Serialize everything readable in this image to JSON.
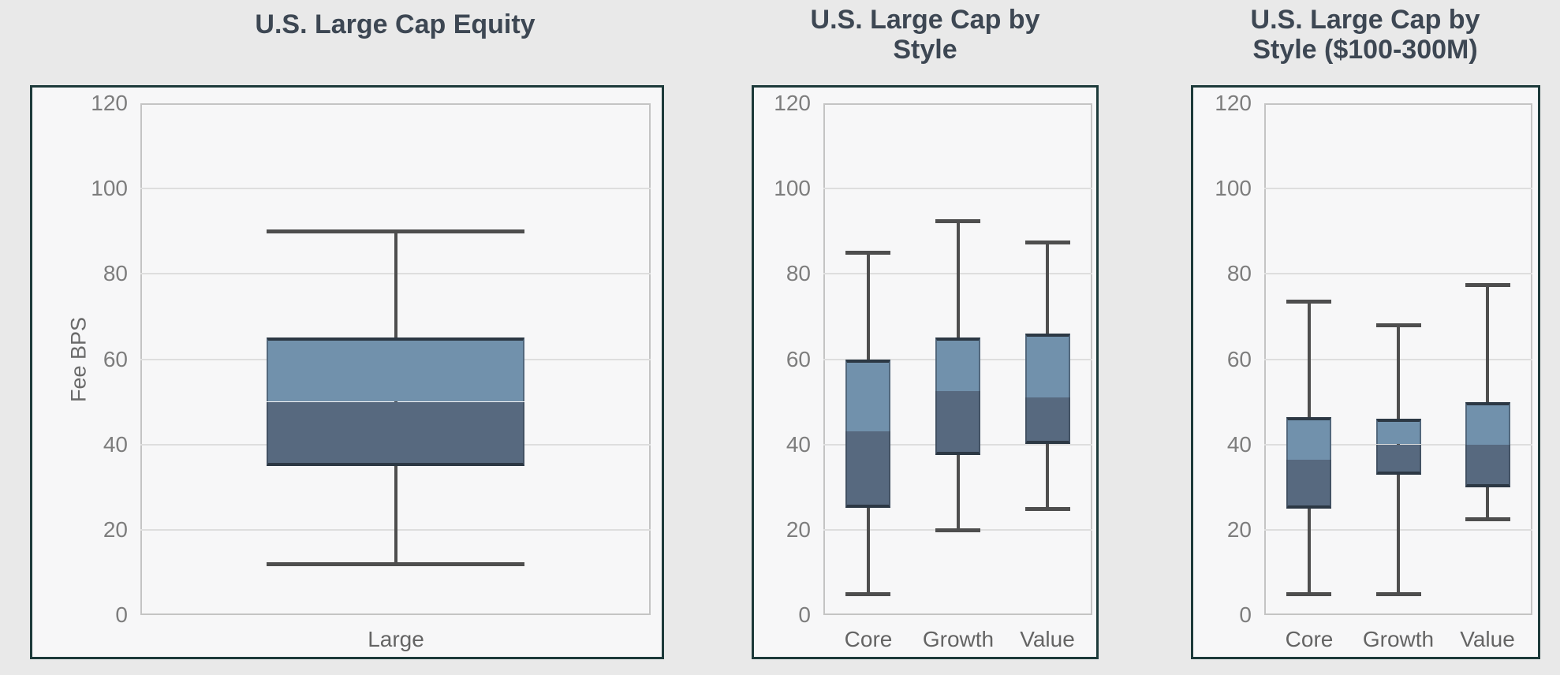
{
  "page": {
    "background_color": "#e9e9e9",
    "card_background": "#f7f7f8",
    "card_border_color": "#1d3a3a",
    "title_color": "#3d4753",
    "tick_label_color": "#7d7d7d",
    "category_label_color": "#646464",
    "gridline_color": "#dedede",
    "box_upper_color": "#7191ac",
    "box_lower_color": "#57697f",
    "box_edge_color": "#2c3844",
    "whisker_color": "#4e4e4e"
  },
  "chart_data": [
    {
      "type": "boxplot",
      "title": "U.S. Large Cap Equity",
      "title_lines": [
        "U.S. Large Cap Equity"
      ],
      "ylabel": "Fee BPS",
      "ylim": [
        0,
        120
      ],
      "yticks": [
        0,
        20,
        40,
        60,
        80,
        100,
        120
      ],
      "grid": true,
      "legend": "none",
      "categories": [
        "Large"
      ],
      "boxes": [
        {
          "category": "Large",
          "whisker_low": 12,
          "q1": 35,
          "median": 50,
          "q3": 65,
          "whisker_high": 90
        }
      ]
    },
    {
      "type": "boxplot",
      "title": "U.S. Large Cap by Style",
      "title_lines": [
        "U.S. Large Cap by",
        "Style"
      ],
      "ylabel": "",
      "ylim": [
        0,
        120
      ],
      "yticks": [
        0,
        20,
        40,
        60,
        80,
        100,
        120
      ],
      "grid": true,
      "legend": "none",
      "categories": [
        "Core",
        "Growth",
        "Value"
      ],
      "boxes": [
        {
          "category": "Core",
          "whisker_low": 5,
          "q1": 25,
          "median": 43,
          "q3": 60,
          "whisker_high": 85
        },
        {
          "category": "Growth",
          "whisker_low": 20,
          "q1": 37.5,
          "median": 52.5,
          "q3": 65,
          "whisker_high": 92.5
        },
        {
          "category": "Value",
          "whisker_low": 25,
          "q1": 40,
          "median": 51,
          "q3": 66,
          "whisker_high": 87.5
        }
      ]
    },
    {
      "type": "boxplot",
      "title": "U.S. Large Cap by Style ($100-300M)",
      "title_lines": [
        "U.S. Large Cap by",
        "Style ($100-300M)"
      ],
      "ylabel": "",
      "ylim": [
        0,
        120
      ],
      "yticks": [
        0,
        20,
        40,
        60,
        80,
        100,
        120
      ],
      "grid": true,
      "legend": "none",
      "categories": [
        "Core",
        "Growth",
        "Value"
      ],
      "boxes": [
        {
          "category": "Core",
          "whisker_low": 5,
          "q1": 25,
          "median": 36.5,
          "q3": 46.5,
          "whisker_high": 73.5
        },
        {
          "category": "Growth",
          "whisker_low": 5,
          "q1": 33,
          "median": 40,
          "q3": 46,
          "whisker_high": 68
        },
        {
          "category": "Value",
          "whisker_low": 22.5,
          "q1": 30,
          "median": 40,
          "q3": 50,
          "whisker_high": 77.5
        }
      ]
    }
  ]
}
